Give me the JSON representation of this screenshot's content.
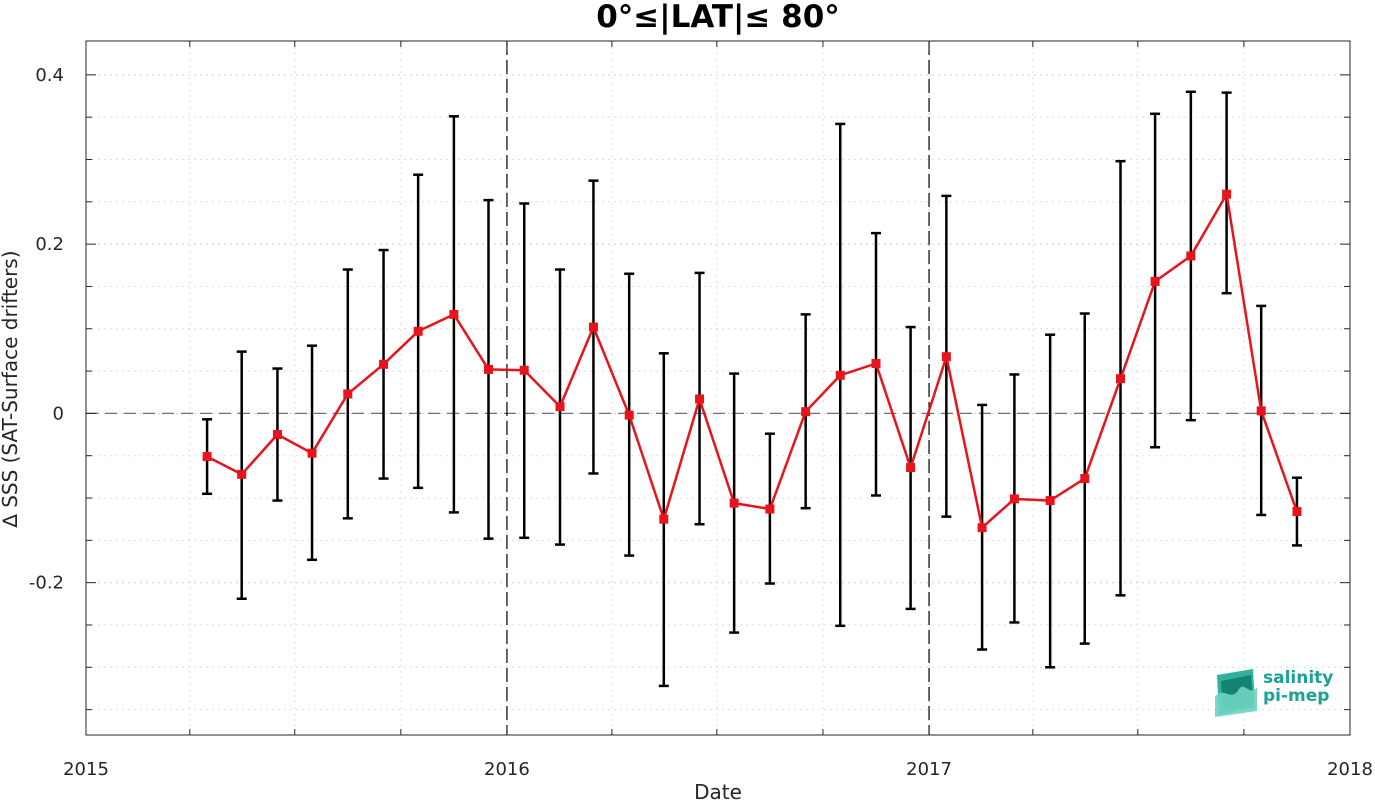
{
  "chart_data": {
    "type": "line",
    "title": "0°≤|LAT|≤ 80°",
    "xlabel": "Date",
    "ylabel": "∆ SSS (SAT-Surface drifters)",
    "xlim": [
      "2015-01-01",
      "2018-01-01"
    ],
    "ylim": [
      -0.38,
      0.44
    ],
    "x_ticks": [
      "2015",
      "2016",
      "2017",
      "2018"
    ],
    "y_ticks": [
      {
        "value": -0.2,
        "label": "-0.2"
      },
      {
        "value": 0,
        "label": "0"
      },
      {
        "value": 0.2,
        "label": "0.2"
      },
      {
        "value": 0.4,
        "label": "0.4"
      }
    ],
    "year_markers": [
      "2016-01-01",
      "2017-01-01"
    ],
    "zero_line": 0,
    "grid": true,
    "line_color": "#e8141b",
    "errorbar_color": "#000000",
    "series": [
      {
        "x": [
          "2015-04-16",
          "2015-05-16",
          "2015-06-16",
          "2015-07-16",
          "2015-08-16",
          "2015-09-16",
          "2015-10-16",
          "2015-11-16",
          "2015-12-16",
          "2016-01-16",
          "2016-02-16",
          "2016-03-16",
          "2016-04-16",
          "2016-05-16",
          "2016-06-16",
          "2016-07-16",
          "2016-08-16",
          "2016-09-16",
          "2016-10-16",
          "2016-11-16",
          "2016-12-16",
          "2017-01-16",
          "2017-02-16",
          "2017-03-16",
          "2017-04-16",
          "2017-05-16",
          "2017-06-16",
          "2017-07-16",
          "2017-08-16",
          "2017-09-16",
          "2017-10-16",
          "2017-11-16"
        ],
        "y": [
          -0.051,
          -0.072,
          -0.025,
          -0.047,
          0.023,
          0.058,
          0.097,
          0.117,
          0.052,
          0.051,
          0.008,
          0.102,
          -0.002,
          -0.125,
          0.017,
          -0.106,
          -0.113,
          0.002,
          0.045,
          0.059,
          -0.064,
          0.067,
          -0.135,
          -0.101,
          -0.103,
          -0.077,
          0.041,
          0.156,
          0.186,
          0.259,
          0.003,
          -0.116
        ],
        "err_low": [
          -0.095,
          -0.219,
          -0.103,
          -0.173,
          -0.124,
          -0.077,
          -0.088,
          -0.117,
          -0.148,
          -0.147,
          -0.155,
          -0.071,
          -0.168,
          -0.322,
          -0.131,
          -0.259,
          -0.201,
          -0.112,
          -0.251,
          -0.097,
          -0.231,
          -0.122,
          -0.279,
          -0.247,
          -0.3,
          -0.272,
          -0.215,
          -0.04,
          -0.008,
          0.142,
          -0.12,
          -0.156
        ],
        "err_high": [
          -0.007,
          0.073,
          0.053,
          0.08,
          0.17,
          0.193,
          0.282,
          0.351,
          0.252,
          0.248,
          0.17,
          0.275,
          0.165,
          0.071,
          0.166,
          0.047,
          -0.024,
          0.117,
          0.342,
          0.213,
          0.102,
          0.257,
          0.01,
          0.046,
          0.093,
          0.118,
          0.298,
          0.354,
          0.38,
          0.379,
          0.127,
          -0.076
        ]
      }
    ]
  },
  "logo": {
    "line1": "salinity",
    "line2": "pi-mep"
  }
}
